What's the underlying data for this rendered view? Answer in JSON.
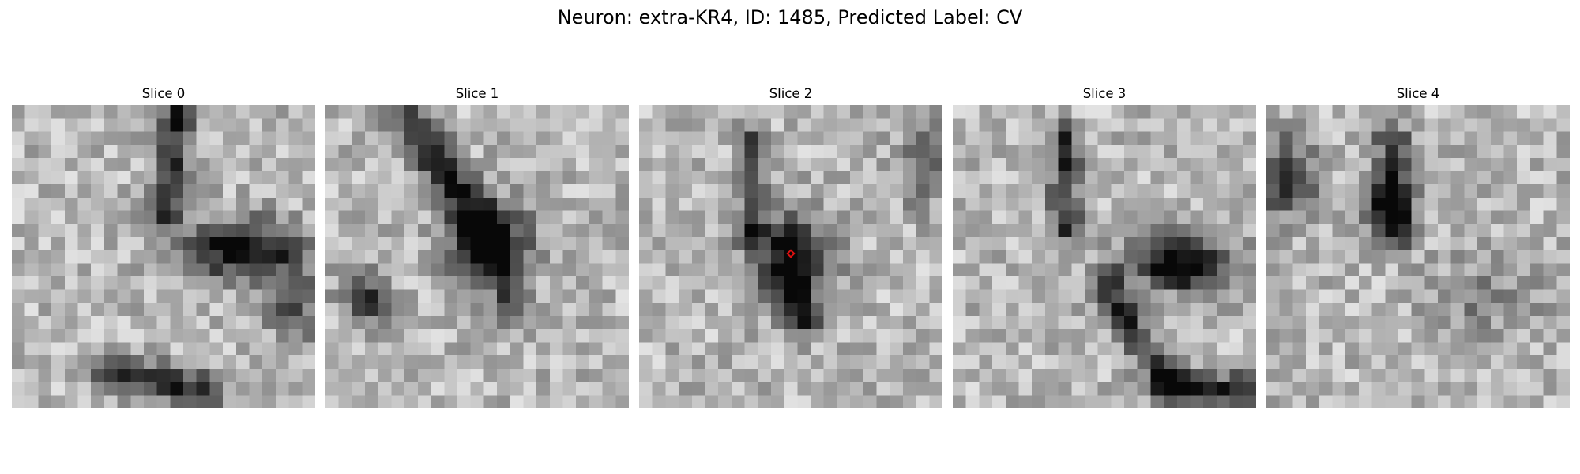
{
  "figure": {
    "title": "Neuron: extra-KR4, ID: 1485, Predicted Label: CV"
  },
  "panels": [
    {
      "title": "Slice 0"
    },
    {
      "title": "Slice 1"
    },
    {
      "title": "Slice 2"
    },
    {
      "title": "Slice 3"
    },
    {
      "title": "Slice 4"
    }
  ],
  "image": {
    "colormap": "grayscale",
    "grid_size": 23
  },
  "marker": {
    "slice_index": 2,
    "shape": "diamond",
    "color": "#e01010"
  }
}
